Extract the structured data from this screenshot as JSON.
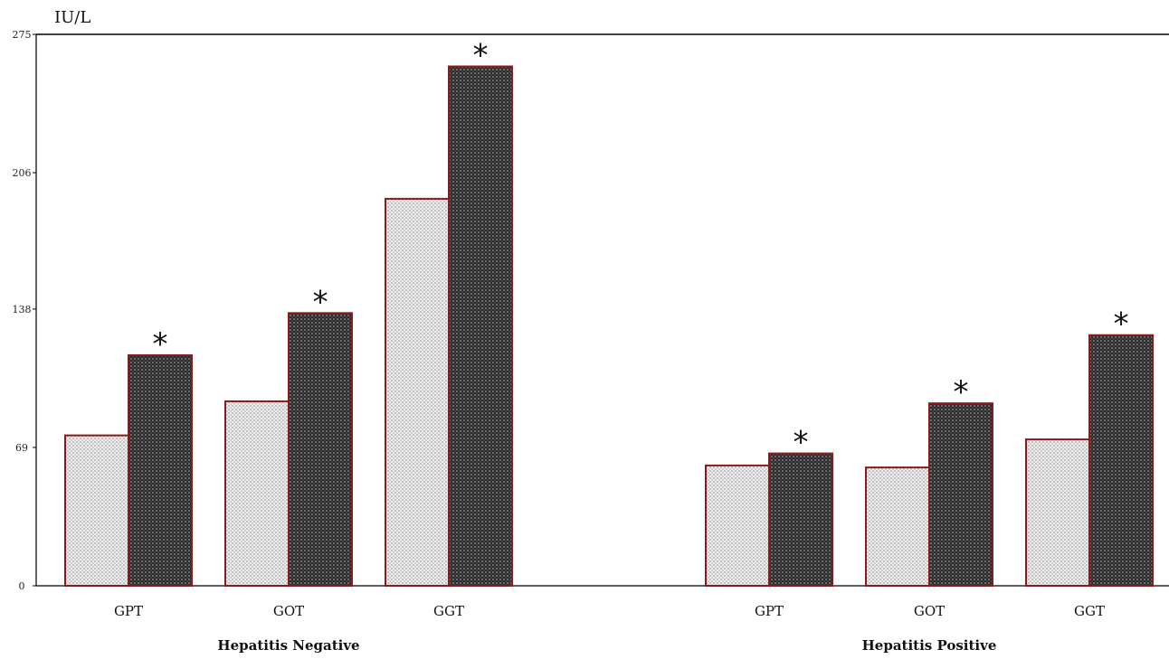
{
  "chart_data": {
    "type": "bar",
    "ylabel": "IU/L",
    "ylim": [
      0,
      275
    ],
    "yticks": [
      0,
      69,
      138,
      206,
      275
    ],
    "grid": false,
    "legend": "none",
    "groups": [
      {
        "name": "Hepatitis Negative",
        "categories": [
          "GPT",
          "GOT",
          "GGT"
        ],
        "series": [
          {
            "values": [
              75,
              92,
              193
            ]
          },
          {
            "values": [
              115,
              136,
              259
            ]
          }
        ],
        "annotations": [
          "",
          "*"
        ]
      },
      {
        "name": "Hepatitis Positive",
        "categories": [
          "GPT",
          "GOT",
          "GGT"
        ],
        "series": [
          {
            "values": [
              60,
              59,
              73
            ]
          },
          {
            "values": [
              66,
              91,
              125
            ]
          }
        ],
        "annotations": [
          "",
          "*"
        ]
      }
    ],
    "colors": {
      "series_light": "#e9e9e9",
      "series_dark": "#2b2b2b",
      "bar_outline": "#8b1a1a",
      "axis": "#000000"
    }
  }
}
